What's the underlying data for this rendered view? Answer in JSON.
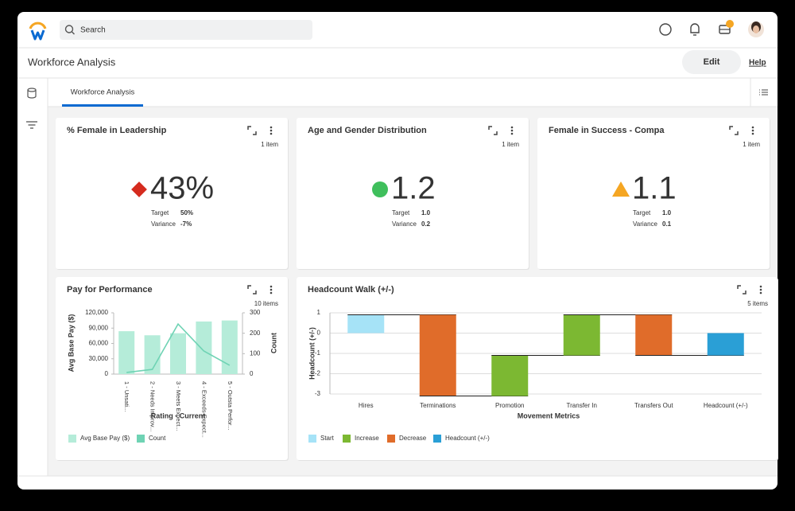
{
  "header": {
    "search_placeholder": "Search"
  },
  "page": {
    "title": "Workforce Analysis",
    "edit": "Edit",
    "help": "Help",
    "tab": "Workforce Analysis"
  },
  "kpi_cards": [
    {
      "title": "% Female in Leadership",
      "items": "1 item",
      "value": "43%",
      "icon": "diamond",
      "icon_color": "#d52b1e",
      "target_label": "Target",
      "target": "50%",
      "variance_label": "Variance",
      "variance": "-7%"
    },
    {
      "title": "Age and Gender Distribution",
      "items": "1 item",
      "value": "1.2",
      "icon": "circle",
      "icon_color": "#3fbf5c",
      "target_label": "Target",
      "target": "1.0",
      "variance_label": "Variance",
      "variance": "0.2"
    },
    {
      "title": "Female in Success - Compa",
      "items": "1 item",
      "value": "1.1",
      "icon": "triangle",
      "icon_color": "#f5a623",
      "target_label": "Target",
      "target": "1.0",
      "variance_label": "Variance",
      "variance": "0.1"
    }
  ],
  "chart_data": [
    {
      "type": "combo",
      "title": "Pay for Performance",
      "items": "10 items",
      "categories": [
        "1 - Unsati...",
        "2 - Needs Improv...",
        "3 - Meets Expect...",
        "4 - Exceeds Expect...",
        "5 - Outsta Perfor..."
      ],
      "x_label": "Rating - Current",
      "y_label": "Avg Base Pay ($)",
      "y2_label": "Count",
      "series": [
        {
          "name": "Avg Base Pay ($)",
          "color": "#b5ecd9",
          "kind": "bar",
          "values": [
            84000,
            76000,
            80000,
            103000,
            105000
          ]
        },
        {
          "name": "Count",
          "color": "#6fd3b4",
          "kind": "line",
          "axis": "y2",
          "values": [
            8,
            23,
            245,
            113,
            43
          ]
        }
      ],
      "ylim": [
        0,
        120000
      ],
      "yticks": [
        0,
        {
          "value": 30000,
          "label": "30,000"
        },
        {
          "value": 60000,
          "label": "60,000"
        },
        {
          "value": 90000,
          "label": "90,000"
        },
        {
          "value": 120000,
          "label": "120,000"
        }
      ],
      "y2lim": [
        0,
        300
      ],
      "y2ticks": [
        0,
        100,
        200,
        300
      ]
    },
    {
      "type": "waterfall",
      "title": "Headcount Walk (+/-)",
      "items": "5 items",
      "categories": [
        "Hires",
        "Terminations",
        "Promotion",
        "Transfer In",
        "Transfers Out",
        "Headcount (+/-)"
      ],
      "values": [
        0.9,
        -4,
        2,
        2,
        -2,
        -1.1
      ],
      "x_label": "Movement Metrics",
      "y_label": "Headcount (+/-)",
      "legend": [
        {
          "name": "Start",
          "color": "#a6e3f7"
        },
        {
          "name": "Increase",
          "color": "#7cb832"
        },
        {
          "name": "Decrease",
          "color": "#e06c2a"
        },
        {
          "name": "Headcount (+/-)",
          "color": "#2a9fd6"
        }
      ],
      "ylim": [
        -3,
        1
      ],
      "yticks": [
        1,
        0,
        -1,
        -2,
        -3
      ],
      "grid": true
    }
  ]
}
